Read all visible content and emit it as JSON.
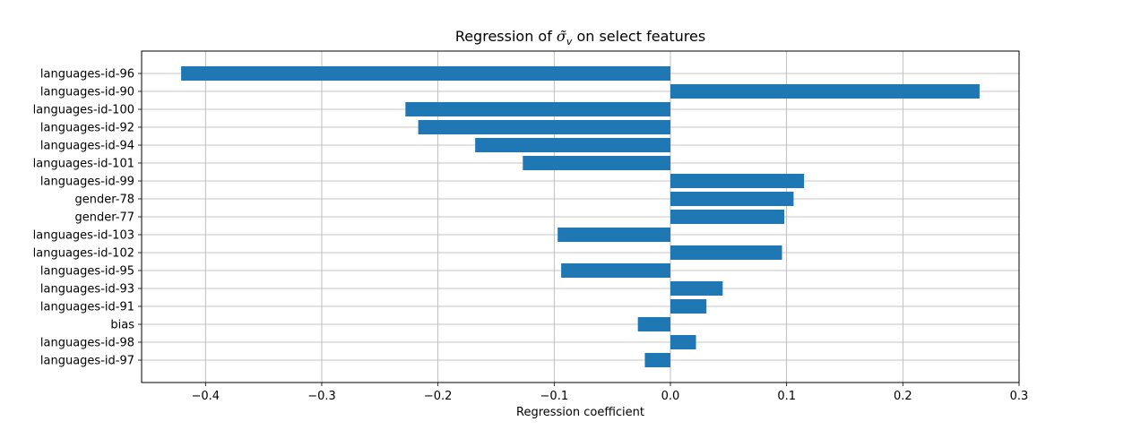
{
  "chart_data": {
    "type": "bar",
    "orientation": "horizontal",
    "title": {
      "prefix": "Regression of ",
      "symbol": "σ̃",
      "subscript": "v",
      "suffix": " on select features"
    },
    "xlabel": "Regression coefficient",
    "ylabel": "",
    "xlim": [
      -0.455,
      0.3
    ],
    "xticks": [
      -0.4,
      -0.3,
      -0.2,
      -0.1,
      0.0,
      0.1,
      0.2,
      0.3
    ],
    "xtick_labels": [
      "−0.4",
      "−0.3",
      "−0.2",
      "−0.1",
      "0.0",
      "0.1",
      "0.2",
      "0.3"
    ],
    "grid": true,
    "bar_color": "#1f77b4",
    "grid_color": "#b0b0b0",
    "categories": [
      "languages-id-96",
      "languages-id-90",
      "languages-id-100",
      "languages-id-92",
      "languages-id-94",
      "languages-id-101",
      "languages-id-99",
      "gender-78",
      "gender-77",
      "languages-id-103",
      "languages-id-102",
      "languages-id-95",
      "languages-id-93",
      "languages-id-91",
      "bias",
      "languages-id-98",
      "languages-id-97"
    ],
    "values": [
      -0.421,
      0.266,
      -0.228,
      -0.217,
      -0.168,
      -0.127,
      0.115,
      0.106,
      0.098,
      -0.097,
      0.096,
      -0.094,
      0.045,
      0.031,
      -0.028,
      0.022,
      -0.022
    ]
  }
}
